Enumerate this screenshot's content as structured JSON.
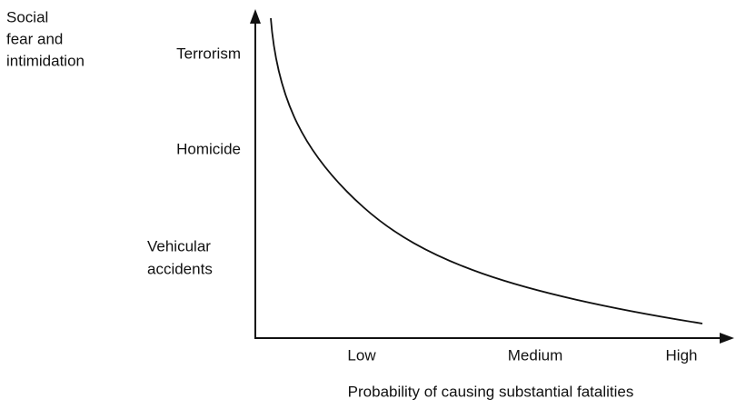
{
  "y_axis": {
    "label_lines": [
      "Social",
      "fear and",
      "intimidation"
    ],
    "categories": [
      [
        "Terrorism"
      ],
      [
        "Homicide"
      ],
      [
        "Vehicular",
        "accidents"
      ]
    ]
  },
  "x_axis": {
    "label": "Probability of causing substantial fatalities",
    "categories": [
      "Low",
      "Medium",
      "High"
    ]
  }
}
